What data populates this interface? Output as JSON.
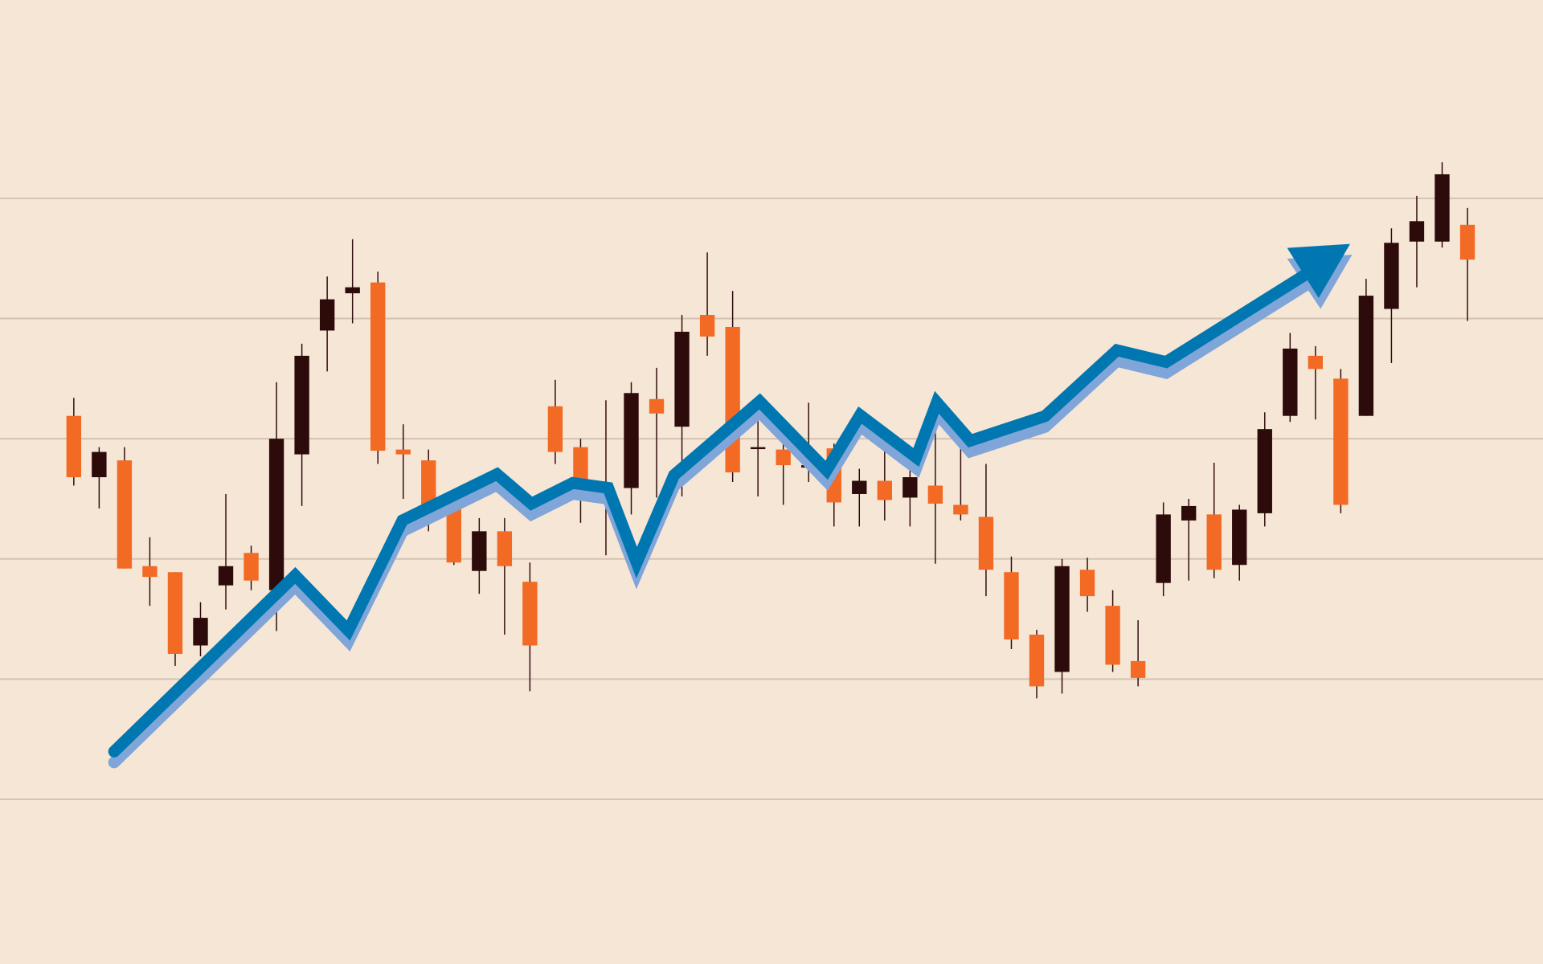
{
  "chart_data": {
    "type": "candlestick",
    "categories": [
      null,
      null,
      null,
      null,
      null,
      null,
      null,
      null,
      null,
      null,
      null,
      null,
      null,
      null,
      null,
      null,
      null,
      null,
      null,
      null,
      null,
      null,
      null,
      null,
      null,
      null,
      null,
      null,
      null,
      null,
      null,
      null,
      null,
      null,
      null,
      null,
      null,
      null,
      null,
      null,
      null,
      null,
      null,
      null,
      null,
      null,
      null,
      null,
      null,
      null,
      null,
      null,
      null,
      null,
      null,
      null
    ],
    "open": [
      3.19,
      2.68,
      2.82,
      1.94,
      1.89,
      1.28,
      1.78,
      2.05,
      1.74,
      2.87,
      3.9,
      4.21,
      4.3,
      2.91,
      2.82,
      2.48,
      1.9,
      2.23,
      1.81,
      3.27,
      2.93,
      2.5,
      2.59,
      3.33,
      3.1,
      4.03,
      3.93,
      2.92,
      2.91,
      2.76,
      2.92,
      2.54,
      2.65,
      2.51,
      2.61,
      2.45,
      2.35,
      1.89,
      1.37,
      1.06,
      1.91,
      1.61,
      1.15,
      1.8,
      2.32,
      2.37,
      1.95,
      2.38,
      3.19,
      3.69,
      3.5,
      3.19,
      4.08,
      4.64,
      4.64,
      4.78
    ],
    "high": [
      3.34,
      2.93,
      2.93,
      2.18,
      1.89,
      1.64,
      2.54,
      2.11,
      3.47,
      3.79,
      4.35,
      4.66,
      4.39,
      3.12,
      2.91,
      2.52,
      2.34,
      2.34,
      1.97,
      3.49,
      3.0,
      3.32,
      3.47,
      3.59,
      4.03,
      4.55,
      4.23,
      3.22,
      3.02,
      3.3,
      2.96,
      2.75,
      2.97,
      2.89,
      3.19,
      3.0,
      2.79,
      2.02,
      1.41,
      2.0,
      2.01,
      1.74,
      1.49,
      2.47,
      2.5,
      2.8,
      2.45,
      3.22,
      3.88,
      3.77,
      3.58,
      4.33,
      4.75,
      5.02,
      5.3,
      4.92
    ],
    "low": [
      2.61,
      2.42,
      1.92,
      1.61,
      1.11,
      1.19,
      1.58,
      1.74,
      1.4,
      2.44,
      3.56,
      3.96,
      2.79,
      2.5,
      2.23,
      1.95,
      1.71,
      1.37,
      0.9,
      2.79,
      2.3,
      2.03,
      2.37,
      2.51,
      2.52,
      3.69,
      2.64,
      2.52,
      2.45,
      2.64,
      2.27,
      2.27,
      2.32,
      2.27,
      1.96,
      2.32,
      1.69,
      1.25,
      0.84,
      0.88,
      1.56,
      1.06,
      0.94,
      1.69,
      1.82,
      1.84,
      1.82,
      2.27,
      3.14,
      3.16,
      2.38,
      3.19,
      3.63,
      4.26,
      4.59,
      3.98
    ],
    "close": [
      2.68,
      2.89,
      1.92,
      1.85,
      1.21,
      1.51,
      1.94,
      1.82,
      3.0,
      3.69,
      4.16,
      4.26,
      2.9,
      2.87,
      2.44,
      1.97,
      2.23,
      1.94,
      1.28,
      2.89,
      2.5,
      2.52,
      3.38,
      3.21,
      3.89,
      3.85,
      2.72,
      2.93,
      2.78,
      2.78,
      2.47,
      2.65,
      2.49,
      2.68,
      2.46,
      2.37,
      1.91,
      1.33,
      0.94,
      1.94,
      1.69,
      1.12,
      1.01,
      2.37,
      2.44,
      1.91,
      2.41,
      3.08,
      3.75,
      3.58,
      2.45,
      4.19,
      4.63,
      4.81,
      5.2,
      4.49
    ],
    "up_color": "#2e0b0b",
    "down_color": "#f26a24",
    "grid_color": "#d4c3b3",
    "ylim": [
      -1.37,
      6.65
    ],
    "yticks": [
      0,
      1,
      2,
      3,
      4,
      5
    ],
    "grid": true
  }
}
